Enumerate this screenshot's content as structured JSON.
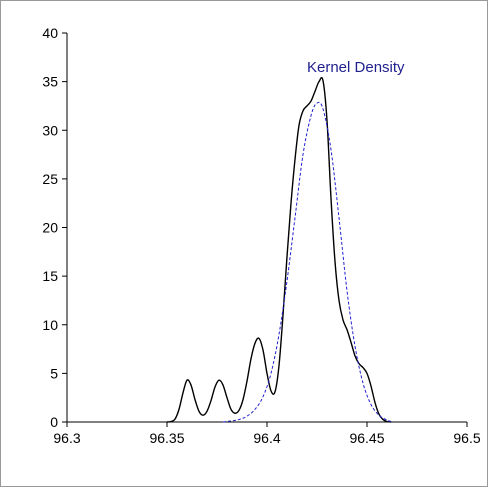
{
  "chart_data": {
    "type": "line",
    "title": "",
    "xlabel": "",
    "ylabel": "",
    "xlim": [
      96.3,
      96.5
    ],
    "ylim": [
      0,
      40
    ],
    "x_ticks": [
      96.3,
      96.35,
      96.4,
      96.45,
      96.5
    ],
    "x_tick_labels": [
      "96.3",
      "96.35",
      "96.4",
      "96.45",
      "96.5"
    ],
    "y_ticks": [
      0,
      5,
      10,
      15,
      20,
      25,
      30,
      35,
      40
    ],
    "y_tick_labels": [
      "0",
      "5",
      "10",
      "15",
      "20",
      "25",
      "30",
      "35",
      "40"
    ],
    "grid": false,
    "legend_position": "top-right",
    "series": [
      {
        "style": "solid",
        "color": "#000000",
        "x": [
          96.35,
          96.352,
          96.354,
          96.356,
          96.358,
          96.36,
          96.362,
          96.364,
          96.366,
          96.368,
          96.37,
          96.372,
          96.374,
          96.376,
          96.378,
          96.38,
          96.382,
          96.384,
          96.386,
          96.388,
          96.39,
          96.392,
          96.394,
          96.396,
          96.398,
          96.4,
          96.402,
          96.404,
          96.406,
          96.408,
          96.41,
          96.412,
          96.414,
          96.416,
          96.418,
          96.42,
          96.422,
          96.424,
          96.426,
          96.428,
          96.43,
          96.432,
          96.434,
          96.436,
          96.438,
          96.44,
          96.442,
          96.444,
          96.446,
          96.448,
          96.45,
          96.452,
          96.454,
          96.456,
          96.458,
          96.46,
          96.462
        ],
        "y": [
          0,
          0.05,
          0.3,
          1.3,
          3.0,
          4.3,
          3.8,
          2.3,
          1.1,
          0.7,
          1.1,
          2.2,
          3.6,
          4.3,
          3.8,
          2.5,
          1.3,
          0.9,
          1.2,
          2.3,
          4.2,
          6.5,
          8.1,
          8.6,
          7.4,
          5.0,
          3.2,
          3.1,
          5.8,
          11.0,
          17.0,
          22.5,
          27.0,
          30.5,
          32.0,
          32.5,
          33.0,
          34.0,
          35.0,
          35.1,
          31.0,
          23.0,
          16.5,
          12.5,
          10.5,
          9.5,
          8.2,
          6.8,
          6.0,
          5.6,
          5.0,
          3.7,
          2.0,
          0.8,
          0.25,
          0.05,
          0
        ]
      },
      {
        "name": "Kernel Density",
        "style": "dashed",
        "color": "#1f1fd1",
        "x": [
          96.378,
          96.382,
          96.386,
          96.39,
          96.394,
          96.398,
          96.402,
          96.406,
          96.41,
          96.414,
          96.418,
          96.422,
          96.425,
          96.428,
          96.432,
          96.436,
          96.44,
          96.444,
          96.448,
          96.452,
          96.456,
          96.46,
          96.463
        ],
        "y": [
          0,
          0.1,
          0.25,
          0.6,
          1.3,
          2.6,
          5.0,
          9.0,
          14.5,
          21.0,
          27.5,
          31.5,
          32.8,
          32.2,
          28.0,
          21.0,
          13.5,
          7.8,
          4.0,
          1.8,
          0.7,
          0.2,
          0
        ]
      }
    ]
  }
}
